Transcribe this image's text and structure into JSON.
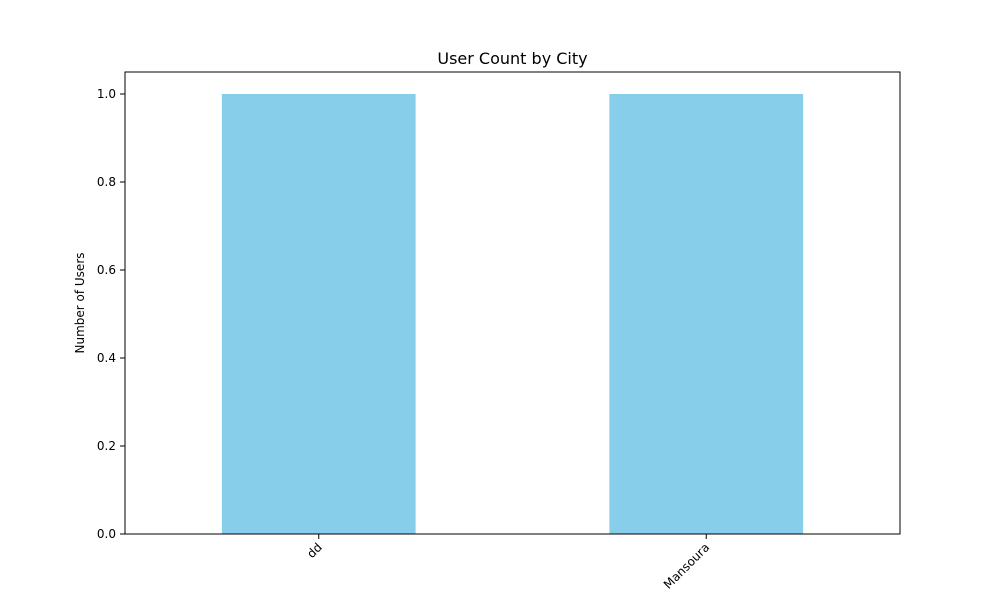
{
  "chart_data": {
    "type": "bar",
    "title": "User Count by City",
    "xlabel": "",
    "ylabel": "Number of Users",
    "categories": [
      "dd",
      "Mansoura"
    ],
    "values": [
      1,
      1
    ],
    "ylim": [
      0,
      1.05
    ],
    "yticks": [
      0.0,
      0.2,
      0.4,
      0.6,
      0.8,
      1.0
    ],
    "ytick_labels": [
      "0.0",
      "0.2",
      "0.4",
      "0.6",
      "0.8",
      "1.0"
    ],
    "bar_color": "#87CEEB",
    "grid": false,
    "xtick_rotation": 45
  }
}
